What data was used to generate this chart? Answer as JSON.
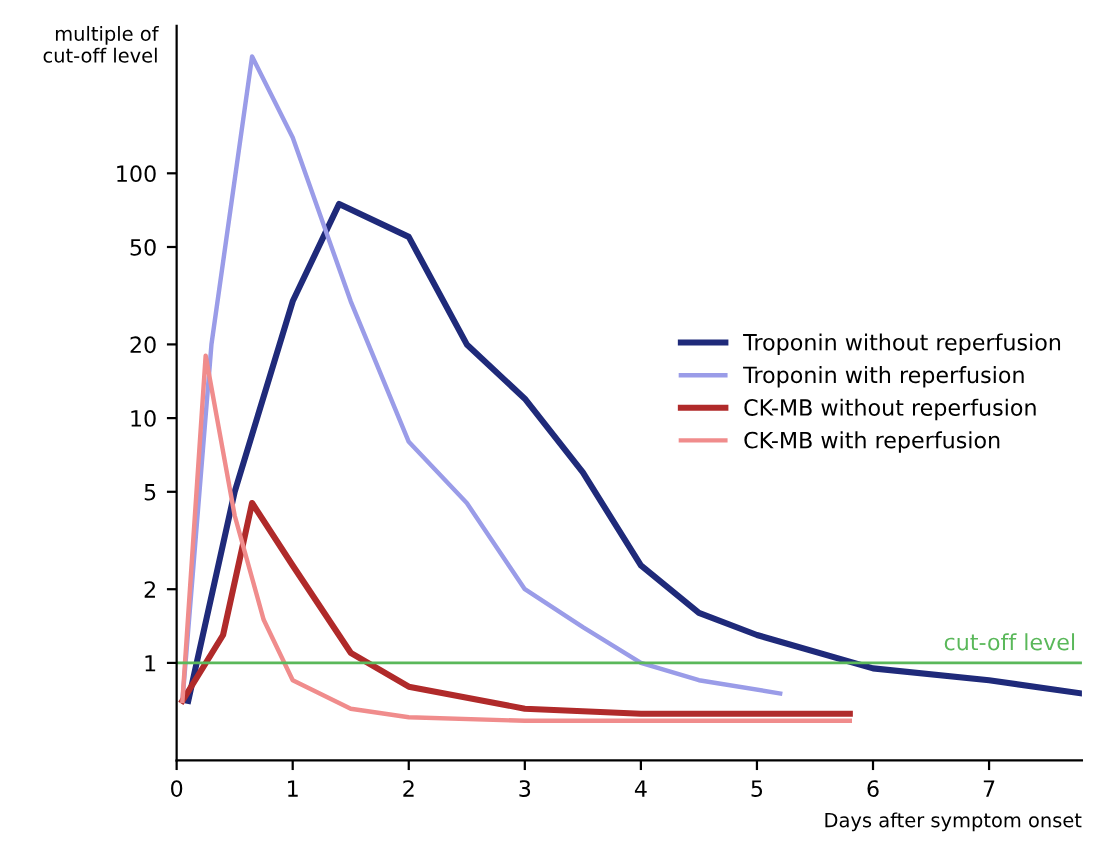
{
  "chart_data": {
    "type": "line",
    "xlabel": "Days after symptom onset",
    "ylabel": "multiple of\ncut-off level",
    "log": "y",
    "xlim": [
      0,
      7.8
    ],
    "ylim": [
      0.4,
      400
    ],
    "xticks": [
      0,
      1,
      2,
      3,
      4,
      5,
      6,
      7
    ],
    "yticks": [
      1,
      2,
      5,
      10,
      20,
      50,
      100
    ],
    "legend": "center right",
    "grid": false,
    "marker": "none",
    "line_style": "solid",
    "ref_lines": [
      {
        "axis": "y",
        "value": 1,
        "label": "cut-off level",
        "color": "#5ab85a"
      }
    ],
    "series": [
      {
        "name": "Troponin without reperfusion",
        "color": "#1f2a7a",
        "x": [
          0.1,
          0.5,
          1.0,
          1.4,
          2.0,
          2.5,
          3.0,
          3.5,
          4.0,
          4.5,
          5.0,
          6.0,
          7.0,
          7.8
        ],
        "values": [
          0.7,
          5,
          30,
          75,
          55,
          20,
          12,
          6,
          2.5,
          1.6,
          1.3,
          0.95,
          0.85,
          0.75
        ]
      },
      {
        "name": "Troponin with reperfusion",
        "color": "#9a9ce8",
        "x": [
          0.05,
          0.3,
          0.65,
          1.0,
          1.5,
          2.0,
          2.5,
          3.0,
          3.5,
          4.0,
          4.5,
          5.2
        ],
        "values": [
          0.7,
          20,
          300,
          140,
          30,
          8,
          4.5,
          2,
          1.4,
          1,
          0.85,
          0.75
        ]
      },
      {
        "name": "CK-MB without reperfusion",
        "color": "#b02a2a",
        "x": [
          0.05,
          0.4,
          0.65,
          1.0,
          1.5,
          2.0,
          3.0,
          4.0,
          5.8
        ],
        "values": [
          0.7,
          1.3,
          4.5,
          2.5,
          1.1,
          0.8,
          0.65,
          0.62,
          0.62
        ]
      },
      {
        "name": "CK-MB with reperfusion",
        "color": "#f08c8c",
        "x": [
          0.05,
          0.25,
          0.5,
          0.75,
          1.0,
          1.5,
          2.0,
          3.0,
          4.0,
          5.8
        ],
        "values": [
          0.7,
          18,
          4,
          1.5,
          0.85,
          0.65,
          0.6,
          0.58,
          0.58,
          0.58
        ]
      }
    ]
  }
}
